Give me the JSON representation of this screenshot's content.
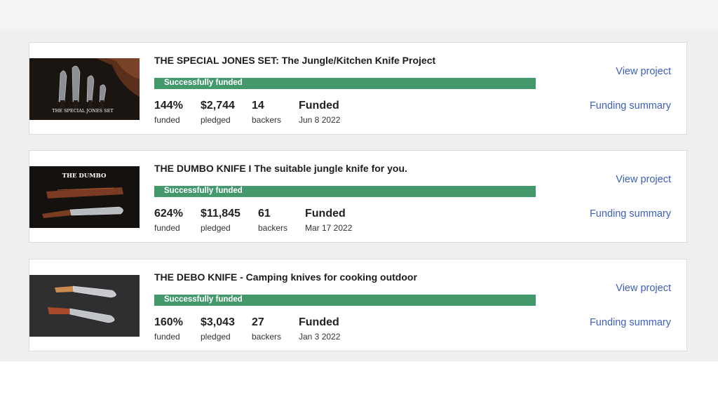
{
  "theme": {
    "accent": "#43996c",
    "link": "#3d5fb8"
  },
  "projects": [
    {
      "title": "THE SPECIAL JONES SET: The Jungle/Kitchen Knife Project",
      "image_caption": "THE SPECIAL JONES SET",
      "status": "Successfully funded",
      "progress_percent": 100,
      "funded_pct": "144%",
      "funded_label": "funded",
      "pledged": "$2,744",
      "pledged_label": "pledged",
      "backers": "14",
      "backers_label": "backers",
      "state": "Funded",
      "date": "Jun 8 2022",
      "view_label": "View project",
      "summary_label": "Funding summary"
    },
    {
      "title": "THE DUMBO KNIFE I The suitable jungle knife for you.",
      "image_caption": "THE DUMBO",
      "status": "Successfully funded",
      "progress_percent": 100,
      "funded_pct": "624%",
      "funded_label": "funded",
      "pledged": "$11,845",
      "pledged_label": "pledged",
      "backers": "61",
      "backers_label": "backers",
      "state": "Funded",
      "date": "Mar 17 2022",
      "view_label": "View project",
      "summary_label": "Funding summary"
    },
    {
      "title": "THE DEBO KNIFE - Camping knives for cooking outdoor",
      "image_caption": "",
      "status": "Successfully funded",
      "progress_percent": 100,
      "funded_pct": "160%",
      "funded_label": "funded",
      "pledged": "$3,043",
      "pledged_label": "pledged",
      "backers": "27",
      "backers_label": "backers",
      "state": "Funded",
      "date": "Jan 3 2022",
      "view_label": "View project",
      "summary_label": "Funding summary"
    }
  ]
}
